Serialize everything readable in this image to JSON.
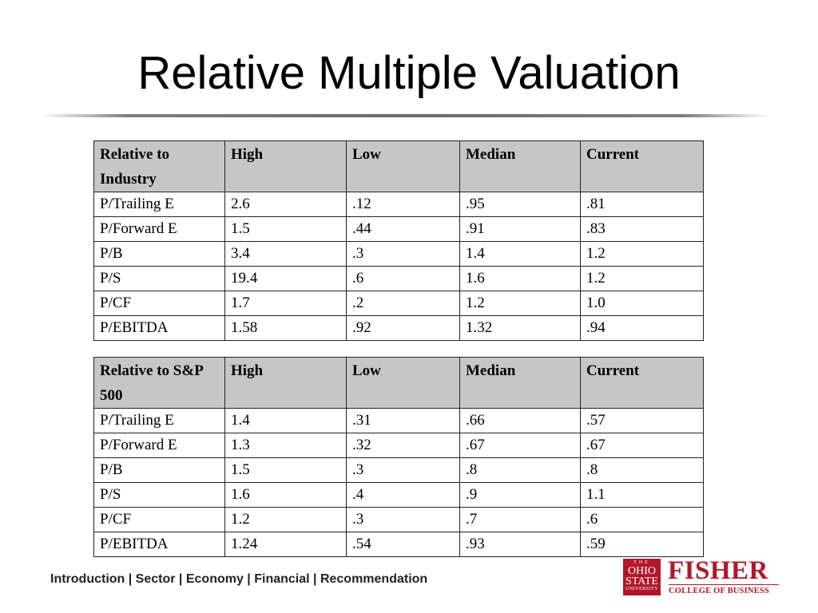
{
  "slide": {
    "title": "Relative Multiple Valuation"
  },
  "table_industry": {
    "headers": [
      "Relative to Industry",
      "High",
      "Low",
      "Median",
      "Current"
    ],
    "rows": [
      [
        "P/Trailing E",
        "2.6",
        ".12",
        ".95",
        ".81"
      ],
      [
        "P/Forward E",
        "1.5",
        ".44",
        ".91",
        ".83"
      ],
      [
        "P/B",
        "3.4",
        ".3",
        "1.4",
        "1.2"
      ],
      [
        "P/S",
        "19.4",
        ".6",
        "1.6",
        "1.2"
      ],
      [
        "P/CF",
        "1.7",
        ".2",
        "1.2",
        "1.0"
      ],
      [
        "P/EBITDA",
        "1.58",
        ".92",
        "1.32",
        ".94"
      ]
    ]
  },
  "table_sp500": {
    "headers": [
      "Relative to S&P 500",
      "High",
      "Low",
      "Median",
      "Current"
    ],
    "rows": [
      [
        "P/Trailing E",
        "1.4",
        ".31",
        ".66",
        ".57"
      ],
      [
        "P/Forward E",
        "1.3",
        ".32",
        ".67",
        ".67"
      ],
      [
        "P/B",
        "1.5",
        ".3",
        ".8",
        ".8"
      ],
      [
        "P/S",
        "1.6",
        ".4",
        ".9",
        "1.1"
      ],
      [
        "P/CF",
        "1.2",
        ".3",
        ".7",
        ".6"
      ],
      [
        "P/EBITDA",
        "1.24",
        ".54",
        ".93",
        ".59"
      ]
    ]
  },
  "footer": {
    "nav": "Introduction | Sector | Economy | Financial | Recommendation"
  },
  "logo": {
    "seal_top": "THE",
    "seal_line1": "OHIO",
    "seal_line2": "STATE",
    "seal_bottom": "UNIVERSITY",
    "brand": "FISHER",
    "subtitle": "COLLEGE OF BUSINESS",
    "color": "#b0182a"
  }
}
